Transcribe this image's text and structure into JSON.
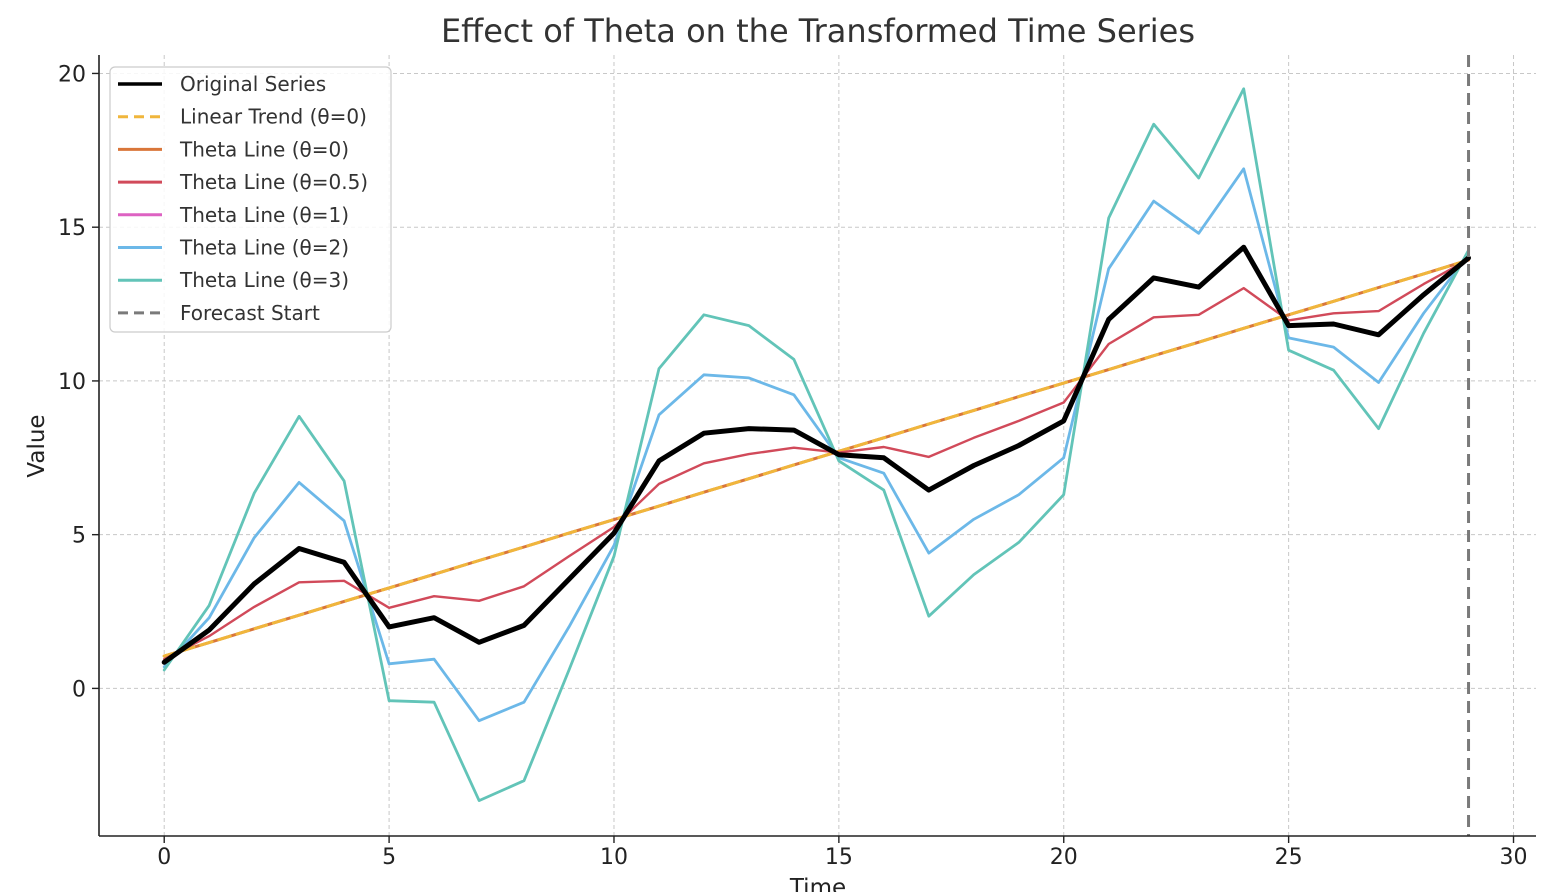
{
  "chart_data": {
    "type": "line",
    "title": "Effect of Theta on the Transformed Time Series",
    "xlabel": "Time",
    "ylabel": "Value",
    "xlim": [
      -1.45,
      30.5
    ],
    "ylim": [
      -4.8,
      20.6
    ],
    "x_ticks": [
      "0",
      "5",
      "10",
      "15",
      "20",
      "25",
      "30"
    ],
    "x_tick_values": [
      0,
      5,
      10,
      15,
      20,
      25,
      30
    ],
    "y_ticks": [
      "0",
      "5",
      "10",
      "15",
      "20"
    ],
    "y_tick_values": [
      0,
      5,
      10,
      15,
      20
    ],
    "grid": true,
    "legend_position": "upper-left",
    "x": [
      0,
      1,
      2,
      3,
      4,
      5,
      6,
      7,
      8,
      9,
      10,
      11,
      12,
      13,
      14,
      15,
      16,
      17,
      18,
      19,
      20,
      21,
      22,
      23,
      24,
      25,
      26,
      27,
      28,
      29
    ],
    "series": [
      {
        "name": "Original Series",
        "color": "#000000",
        "dash": "solid",
        "values": [
          0.85,
          1.9,
          3.4,
          4.55,
          4.1,
          2.0,
          2.3,
          1.5,
          2.05,
          3.55,
          5.05,
          7.4,
          8.3,
          8.45,
          8.4,
          7.6,
          7.5,
          6.45,
          7.25,
          7.9,
          8.7,
          12.0,
          13.35,
          13.05,
          14.35,
          11.8,
          11.85,
          11.5,
          12.8,
          14.0
        ]
      },
      {
        "name": "Linear Trend (θ=0)",
        "color": "#f0b63c",
        "dash": "dashed",
        "values": [
          1.05,
          1.49,
          1.94,
          2.38,
          2.83,
          3.27,
          3.71,
          4.16,
          4.6,
          5.05,
          5.49,
          5.93,
          6.38,
          6.82,
          7.27,
          7.71,
          8.15,
          8.6,
          9.04,
          9.49,
          9.93,
          10.37,
          10.82,
          11.26,
          11.71,
          12.15,
          12.59,
          13.04,
          13.48,
          13.93
        ]
      },
      {
        "name": "Theta Line (θ=0)",
        "color": "#d9763a",
        "dash": "solid",
        "values": [
          1.05,
          1.49,
          1.94,
          2.38,
          2.83,
          3.27,
          3.71,
          4.16,
          4.6,
          5.05,
          5.49,
          5.93,
          6.38,
          6.82,
          7.27,
          7.71,
          8.15,
          8.6,
          9.04,
          9.49,
          9.93,
          10.37,
          10.82,
          11.26,
          11.71,
          12.15,
          12.59,
          13.04,
          13.48,
          13.93
        ]
      },
      {
        "name": "Theta Line (θ=0.5)",
        "color": "#d14a5a",
        "dash": "solid",
        "values": [
          0.95,
          1.7,
          2.65,
          3.45,
          3.5,
          2.62,
          3.0,
          2.85,
          3.32,
          4.3,
          5.25,
          6.65,
          7.32,
          7.62,
          7.83,
          7.67,
          7.85,
          7.53,
          8.15,
          8.7,
          9.3,
          11.2,
          12.07,
          12.15,
          13.02,
          11.97,
          12.2,
          12.27,
          13.15,
          13.95
        ]
      },
      {
        "name": "Theta Line (θ=1)",
        "color": "#dd62c2",
        "dash": "solid",
        "values": [
          0.85,
          1.9,
          3.4,
          4.55,
          4.1,
          2.0,
          2.3,
          1.5,
          2.05,
          3.55,
          5.05,
          7.4,
          8.3,
          8.45,
          8.4,
          7.6,
          7.5,
          6.45,
          7.25,
          7.9,
          8.7,
          12.0,
          13.35,
          13.05,
          14.35,
          11.8,
          11.85,
          11.5,
          12.8,
          14.0
        ]
      },
      {
        "name": "Theta Line (θ=2)",
        "color": "#6cb8e8",
        "dash": "solid",
        "values": [
          0.7,
          2.3,
          4.9,
          6.7,
          5.45,
          0.8,
          0.95,
          -1.05,
          -0.45,
          2.0,
          4.65,
          8.9,
          10.2,
          10.1,
          9.55,
          7.5,
          7.0,
          4.4,
          5.5,
          6.3,
          7.5,
          13.65,
          15.85,
          14.8,
          16.9,
          11.4,
          11.1,
          9.95,
          12.2,
          14.1
        ]
      },
      {
        "name": "Theta Line (θ=3)",
        "color": "#62c4b8",
        "dash": "solid",
        "values": [
          0.6,
          2.7,
          6.35,
          8.85,
          6.75,
          -0.4,
          -0.45,
          -3.65,
          -3.0,
          0.6,
          4.3,
          10.4,
          12.15,
          11.8,
          10.7,
          7.4,
          6.45,
          2.35,
          3.7,
          4.75,
          6.3,
          15.3,
          18.35,
          16.6,
          19.5,
          11.0,
          10.35,
          8.45,
          11.55,
          14.25
        ]
      },
      {
        "name": "Forecast Start",
        "color": "#7a7a7a",
        "dash": "dashed",
        "vertical_line_x": 29
      }
    ]
  }
}
